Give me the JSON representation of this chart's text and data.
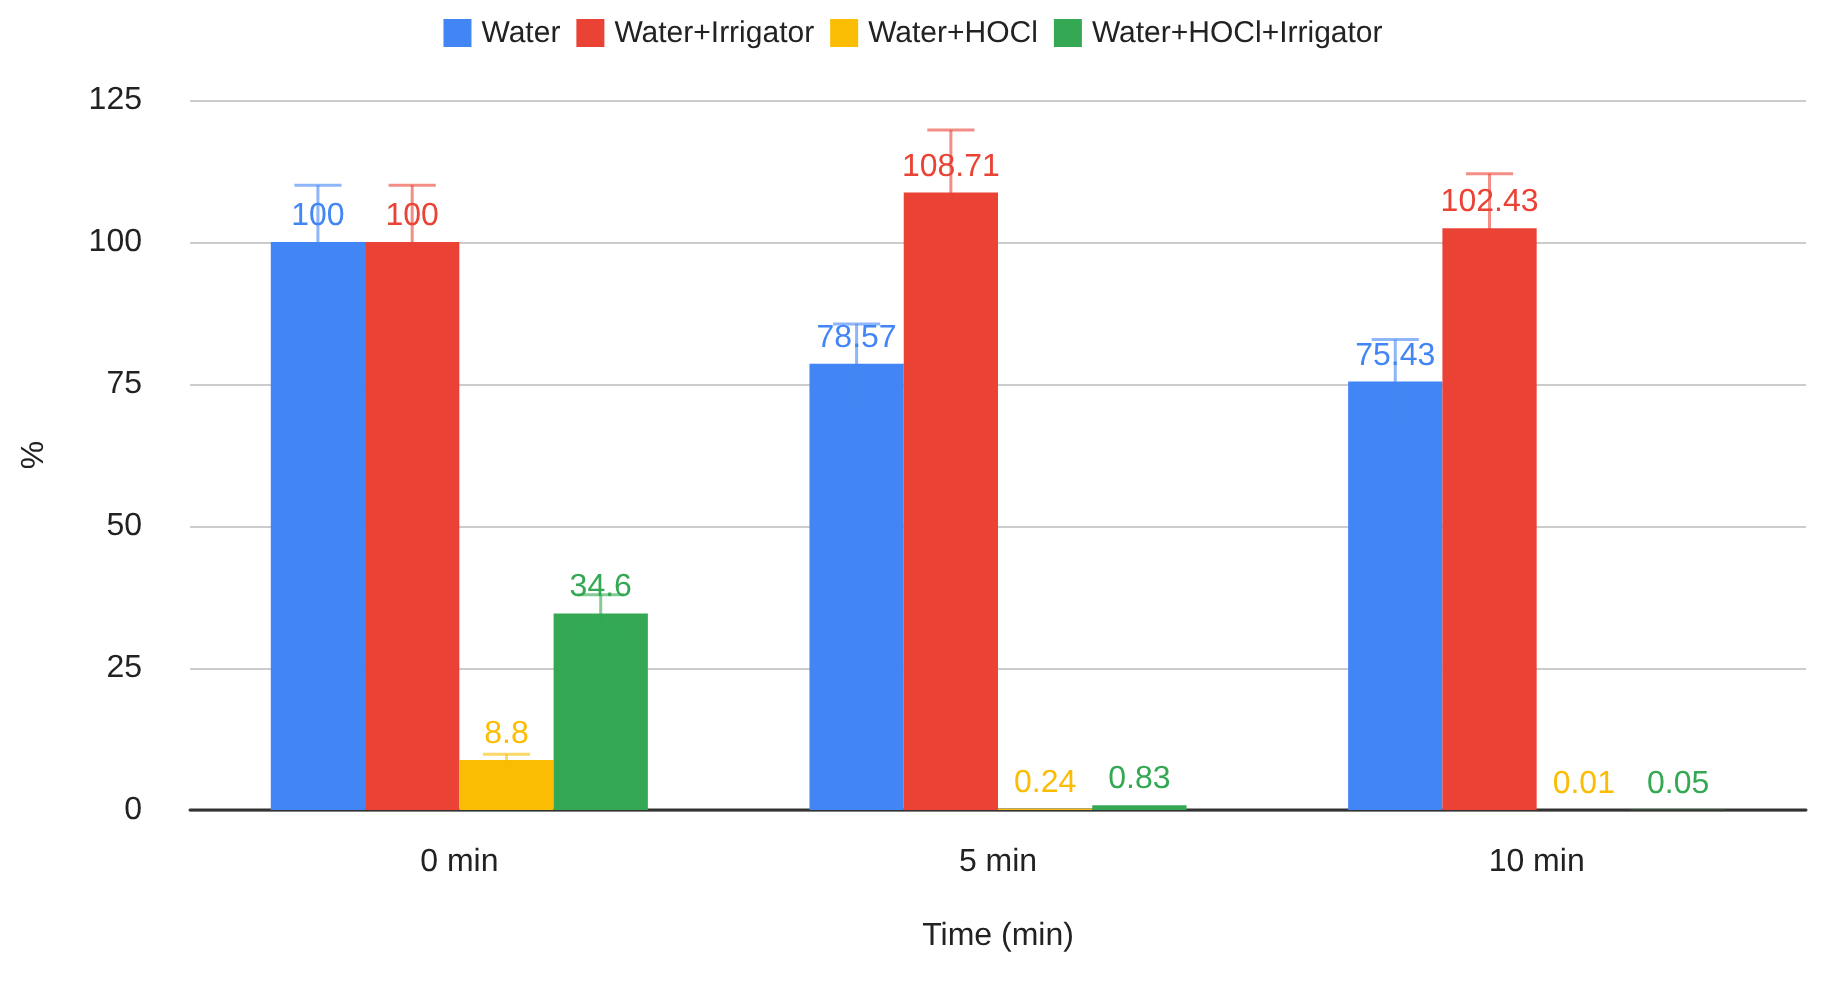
{
  "chart_data": {
    "type": "bar",
    "xlabel": "Time (min)",
    "ylabel": "%",
    "categories": [
      "0 min",
      "5 min",
      "10 min"
    ],
    "series": [
      {
        "name": "Water",
        "color": "#4285f4",
        "values": [
          100,
          78.57,
          75.43
        ],
        "errors": [
          10,
          7,
          7.4
        ]
      },
      {
        "name": "Water+Irrigator",
        "color": "#ea4335",
        "values": [
          100,
          108.71,
          102.43
        ],
        "errors": [
          10,
          11,
          9.6
        ]
      },
      {
        "name": "Water+HOCl",
        "color": "#fbbc04",
        "values": [
          8.8,
          0.24,
          0.01
        ],
        "errors": [
          1,
          null,
          null
        ]
      },
      {
        "name": "Water+HOCl+Irrigator",
        "color": "#34a853",
        "values": [
          34.6,
          0.83,
          0.05
        ],
        "errors": [
          3.3,
          null,
          null
        ]
      }
    ],
    "ylim": [
      0,
      125
    ],
    "yticks": [
      0,
      25,
      50,
      75,
      100,
      125
    ],
    "grid": "y",
    "legend": "top",
    "data_labels": true
  }
}
